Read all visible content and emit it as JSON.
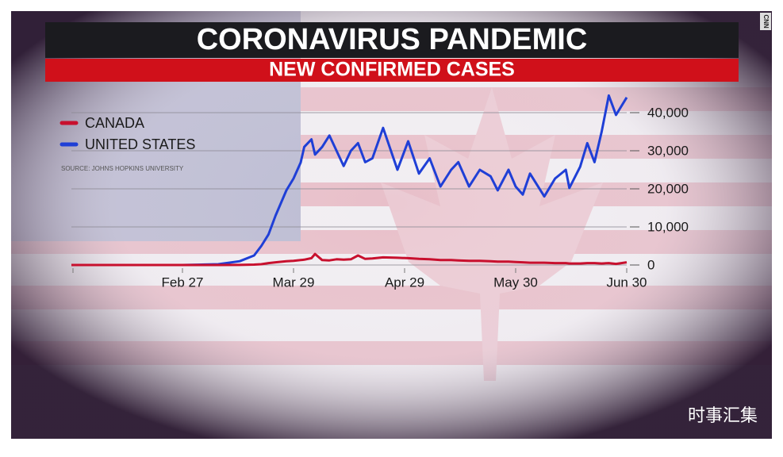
{
  "chart_data": {
    "type": "line",
    "title": "CORONAVIRUS PANDEMIC",
    "subtitle": "NEW CONFIRMED CASES",
    "source": "SOURCE: JOHNS HOPKINS UNIVERSITY",
    "logo": "CNN",
    "watermark": "时事汇集",
    "x": [
      "Jan 27",
      "Feb 10",
      "Feb 27",
      "Mar 8",
      "Mar 14",
      "Mar 18",
      "Mar 20",
      "Mar 22",
      "Mar 24",
      "Mar 27",
      "Mar 29",
      "Mar 31",
      "Apr 1",
      "Apr 3",
      "Apr 4",
      "Apr 6",
      "Apr 8",
      "Apr 10",
      "Apr 12",
      "Apr 14",
      "Apr 16",
      "Apr 18",
      "Apr 20",
      "Apr 23",
      "Apr 27",
      "Apr 30",
      "May 3",
      "May 6",
      "May 9",
      "May 12",
      "May 14",
      "May 17",
      "May 20",
      "May 23",
      "May 25",
      "May 28",
      "May 30",
      "Jun 1",
      "Jun 3",
      "Jun 7",
      "Jun 10",
      "Jun 13",
      "Jun 14",
      "Jun 17",
      "Jun 19",
      "Jun 21",
      "Jun 23",
      "Jun 25",
      "Jun 27",
      "Jun 30"
    ],
    "series": [
      {
        "name": "CANADA",
        "color": "#c8102e",
        "values": [
          0,
          0,
          0,
          0,
          20,
          100,
          200,
          500,
          700,
          1000,
          1100,
          1300,
          1400,
          1800,
          2900,
          1300,
          1200,
          1500,
          1400,
          1500,
          2500,
          1600,
          1700,
          2000,
          1900,
          1800,
          1600,
          1500,
          1300,
          1300,
          1200,
          1100,
          1100,
          1000,
          900,
          900,
          800,
          700,
          600,
          600,
          500,
          500,
          400,
          400,
          500,
          500,
          400,
          500,
          300,
          700
        ]
      },
      {
        "name": "UNITED STATES",
        "color": "#1f3fd6",
        "values": [
          0,
          0,
          0,
          200,
          1000,
          2500,
          5000,
          8000,
          13000,
          19600,
          22700,
          26900,
          31000,
          33000,
          29000,
          31000,
          34000,
          30000,
          26000,
          30000,
          32000,
          27000,
          28000,
          36000,
          25000,
          32500,
          24000,
          28000,
          20600,
          25000,
          27000,
          20600,
          25000,
          23300,
          19600,
          25000,
          20600,
          18500,
          24000,
          18000,
          22700,
          25000,
          20200,
          25800,
          32000,
          27000,
          35000,
          44500,
          39400,
          44000
        ]
      }
    ],
    "xlim": [
      "Jan 27",
      "Jun 30"
    ],
    "xticks": [
      "Feb 27",
      "Mar 29",
      "Apr 29",
      "May 30",
      "Jun 30"
    ],
    "ylim": [
      0,
      45000
    ],
    "yticks": [
      0,
      {
        "value": 10000,
        "label": "10,000"
      },
      {
        "value": 20000,
        "label": "20,000"
      },
      {
        "value": 30000,
        "label": "30,000"
      },
      {
        "value": 40000,
        "label": "40,000"
      }
    ],
    "grid": true,
    "legend": "top-left"
  }
}
